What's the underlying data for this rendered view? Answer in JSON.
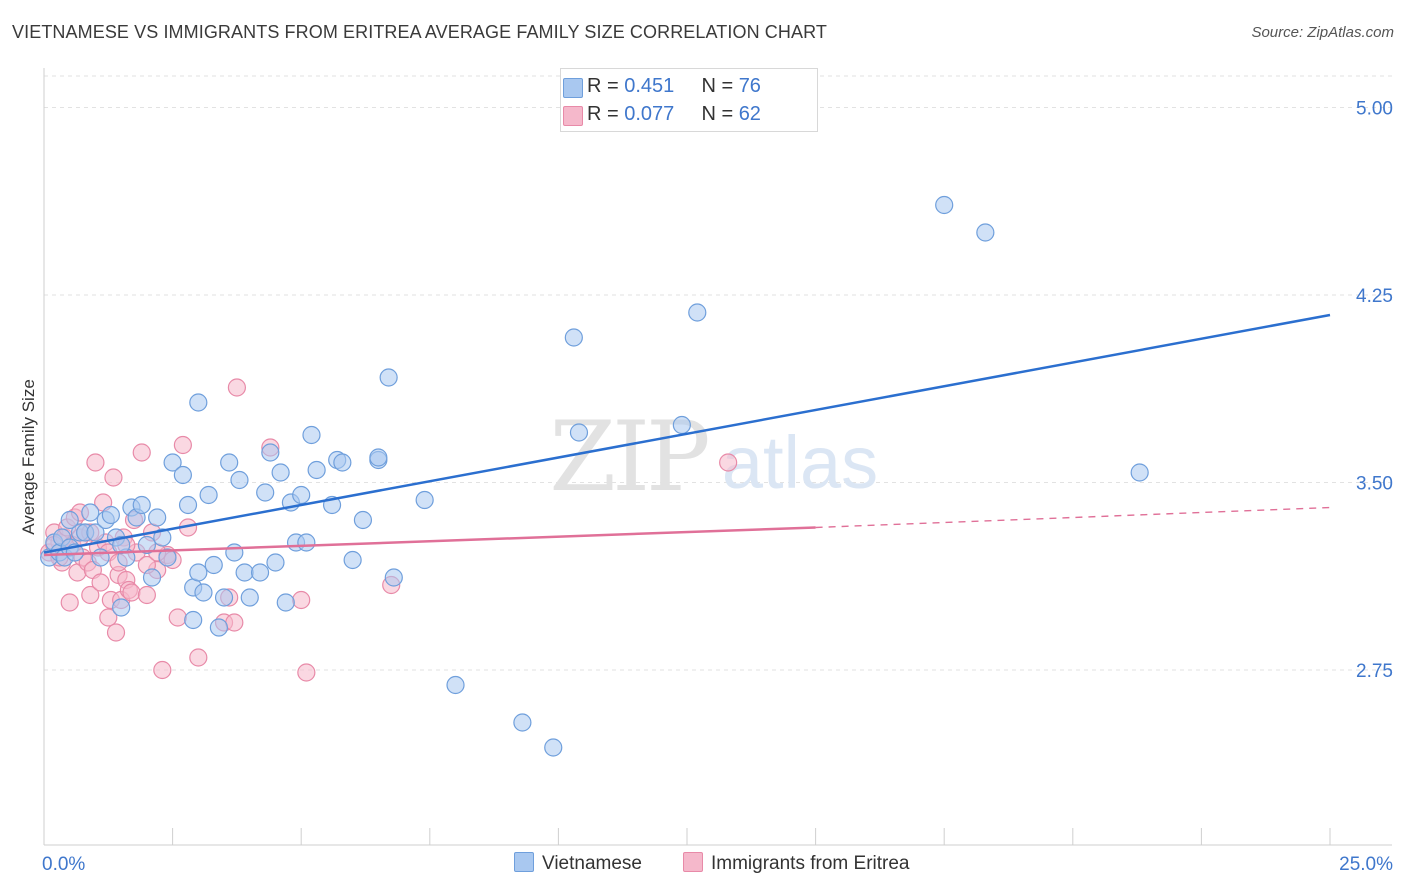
{
  "title": "VIETNAMESE VS IMMIGRANTS FROM ERITREA AVERAGE FAMILY SIZE CORRELATION CHART",
  "source": "Source: ZipAtlas.com",
  "watermark": {
    "zip": "ZIP",
    "atlas": "atlas"
  },
  "legend": {
    "rows": [
      {
        "r_label": "R = ",
        "r_value": "0.451",
        "n_label": "N = ",
        "n_value": "76"
      },
      {
        "r_label": "R = ",
        "r_value": "0.077",
        "n_label": "N = ",
        "n_value": "62"
      }
    ]
  },
  "colors": {
    "blue_fill": "#a9c8f0",
    "blue_stroke": "#6f9fdc",
    "blue_line": "#2b6fcf",
    "pink_fill": "#f5b8cb",
    "pink_stroke": "#e88aa8",
    "pink_line": "#e07098",
    "tick_text": "#3f77cc",
    "grid": "#e2e2e2"
  },
  "chart_data": {
    "type": "scatter",
    "title": "VIETNAMESE VS IMMIGRANTS FROM ERITREA AVERAGE FAMILY SIZE CORRELATION CHART",
    "xlabel": "",
    "ylabel": "Average Family Size",
    "xlim": [
      0,
      25
    ],
    "ylim": [
      2.05,
      5.15
    ],
    "x_tick_labels": [
      "0.0%",
      "25.0%"
    ],
    "y_ticks": [
      2.75,
      3.5,
      4.25,
      5.0
    ],
    "y_tick_labels": [
      "2.75",
      "3.50",
      "4.25",
      "5.00"
    ],
    "grid": "horizontal dashed",
    "legend_placement": "bottom",
    "series": [
      {
        "name": "Vietnamese",
        "points": [
          [
            0.1,
            3.2
          ],
          [
            0.2,
            3.26
          ],
          [
            0.3,
            3.22
          ],
          [
            0.35,
            3.28
          ],
          [
            0.4,
            3.2
          ],
          [
            0.5,
            3.24
          ],
          [
            0.6,
            3.22
          ],
          [
            0.7,
            3.3
          ],
          [
            0.8,
            3.3
          ],
          [
            0.9,
            3.38
          ],
          [
            1.0,
            3.3
          ],
          [
            1.1,
            3.2
          ],
          [
            1.2,
            3.35
          ],
          [
            1.3,
            3.37
          ],
          [
            1.4,
            3.28
          ],
          [
            1.5,
            3.0
          ],
          [
            1.6,
            3.2
          ],
          [
            1.7,
            3.4
          ],
          [
            1.8,
            3.36
          ],
          [
            1.9,
            3.41
          ],
          [
            2.0,
            3.25
          ],
          [
            2.1,
            3.12
          ],
          [
            2.2,
            3.36
          ],
          [
            2.3,
            3.28
          ],
          [
            2.4,
            3.2
          ],
          [
            2.5,
            3.58
          ],
          [
            2.7,
            3.53
          ],
          [
            2.9,
            3.08
          ],
          [
            2.8,
            3.41
          ],
          [
            3.0,
            3.14
          ],
          [
            3.1,
            3.06
          ],
          [
            3.2,
            3.45
          ],
          [
            3.3,
            3.17
          ],
          [
            3.4,
            2.92
          ],
          [
            3.5,
            3.04
          ],
          [
            3.6,
            3.58
          ],
          [
            3.7,
            3.22
          ],
          [
            3.8,
            3.51
          ],
          [
            3.9,
            3.14
          ],
          [
            4.0,
            3.04
          ],
          [
            4.2,
            3.14
          ],
          [
            4.3,
            3.46
          ],
          [
            4.4,
            3.62
          ],
          [
            4.5,
            3.18
          ],
          [
            4.6,
            3.54
          ],
          [
            4.7,
            3.02
          ],
          [
            4.8,
            3.42
          ],
          [
            4.9,
            3.26
          ],
          [
            5.0,
            3.45
          ],
          [
            5.1,
            3.26
          ],
          [
            5.2,
            3.69
          ],
          [
            5.3,
            3.55
          ],
          [
            5.6,
            3.41
          ],
          [
            5.7,
            3.59
          ],
          [
            5.8,
            3.58
          ],
          [
            6.0,
            3.19
          ],
          [
            6.2,
            3.35
          ],
          [
            6.5,
            3.59
          ],
          [
            6.5,
            3.6
          ],
          [
            6.7,
            3.92
          ],
          [
            6.8,
            3.12
          ],
          [
            7.4,
            3.43
          ],
          [
            8.0,
            2.69
          ],
          [
            9.3,
            2.54
          ],
          [
            9.9,
            2.44
          ],
          [
            10.3,
            4.08
          ],
          [
            10.4,
            3.7
          ],
          [
            12.4,
            3.73
          ],
          [
            12.7,
            4.18
          ],
          [
            17.5,
            4.61
          ],
          [
            18.3,
            4.5
          ],
          [
            21.3,
            3.54
          ],
          [
            3.0,
            3.82
          ],
          [
            2.9,
            2.95
          ],
          [
            1.5,
            3.25
          ],
          [
            0.5,
            3.35
          ]
        ]
      },
      {
        "name": "Immigrants from Eritrea",
        "points": [
          [
            0.1,
            3.22
          ],
          [
            0.2,
            3.3
          ],
          [
            0.3,
            3.26
          ],
          [
            0.35,
            3.18
          ],
          [
            0.4,
            3.28
          ],
          [
            0.45,
            3.32
          ],
          [
            0.5,
            3.02
          ],
          [
            0.55,
            3.25
          ],
          [
            0.6,
            3.36
          ],
          [
            0.65,
            3.14
          ],
          [
            0.7,
            3.28
          ],
          [
            0.75,
            3.2
          ],
          [
            0.8,
            3.3
          ],
          [
            0.85,
            3.18
          ],
          [
            0.9,
            3.05
          ],
          [
            0.95,
            3.15
          ],
          [
            1.0,
            3.58
          ],
          [
            1.05,
            3.24
          ],
          [
            1.1,
            3.1
          ],
          [
            1.15,
            3.42
          ],
          [
            1.2,
            3.26
          ],
          [
            1.25,
            2.96
          ],
          [
            1.3,
            3.03
          ],
          [
            1.35,
            3.52
          ],
          [
            1.4,
            2.9
          ],
          [
            1.45,
            3.13
          ],
          [
            1.5,
            3.03
          ],
          [
            1.55,
            3.28
          ],
          [
            1.6,
            3.11
          ],
          [
            1.65,
            3.07
          ],
          [
            1.7,
            3.06
          ],
          [
            1.75,
            3.35
          ],
          [
            1.8,
            3.22
          ],
          [
            1.9,
            3.62
          ],
          [
            2.0,
            3.05
          ],
          [
            2.1,
            3.3
          ],
          [
            2.2,
            3.15
          ],
          [
            2.3,
            2.75
          ],
          [
            2.4,
            3.21
          ],
          [
            2.5,
            3.19
          ],
          [
            2.6,
            2.96
          ],
          [
            2.7,
            3.65
          ],
          [
            2.8,
            3.32
          ],
          [
            3.0,
            2.8
          ],
          [
            3.5,
            2.94
          ],
          [
            3.6,
            3.04
          ],
          [
            3.7,
            2.94
          ],
          [
            3.75,
            3.88
          ],
          [
            4.4,
            3.64
          ],
          [
            5.0,
            3.03
          ],
          [
            5.1,
            2.74
          ],
          [
            6.75,
            3.09
          ],
          [
            13.3,
            3.58
          ],
          [
            0.2,
            3.25
          ],
          [
            0.9,
            3.3
          ],
          [
            1.25,
            3.22
          ],
          [
            1.45,
            3.18
          ],
          [
            1.6,
            3.25
          ],
          [
            2.0,
            3.17
          ],
          [
            2.2,
            3.22
          ],
          [
            0.3,
            3.2
          ],
          [
            0.7,
            3.38
          ]
        ]
      }
    ],
    "trend_lines": [
      {
        "series": "Vietnamese",
        "x": [
          0.0,
          25.0
        ],
        "y": [
          3.22,
          4.17
        ],
        "style": "solid"
      },
      {
        "series": "Immigrants from Eritrea",
        "x": [
          0.0,
          15.0
        ],
        "y": [
          3.21,
          3.32
        ],
        "style": "solid"
      },
      {
        "series": "Immigrants from Eritrea",
        "x": [
          15.0,
          25.0
        ],
        "y": [
          3.32,
          3.4
        ],
        "style": "dashed"
      }
    ]
  },
  "bottom_legend": [
    {
      "label": "Vietnamese"
    },
    {
      "label": "Immigrants from Eritrea"
    }
  ]
}
